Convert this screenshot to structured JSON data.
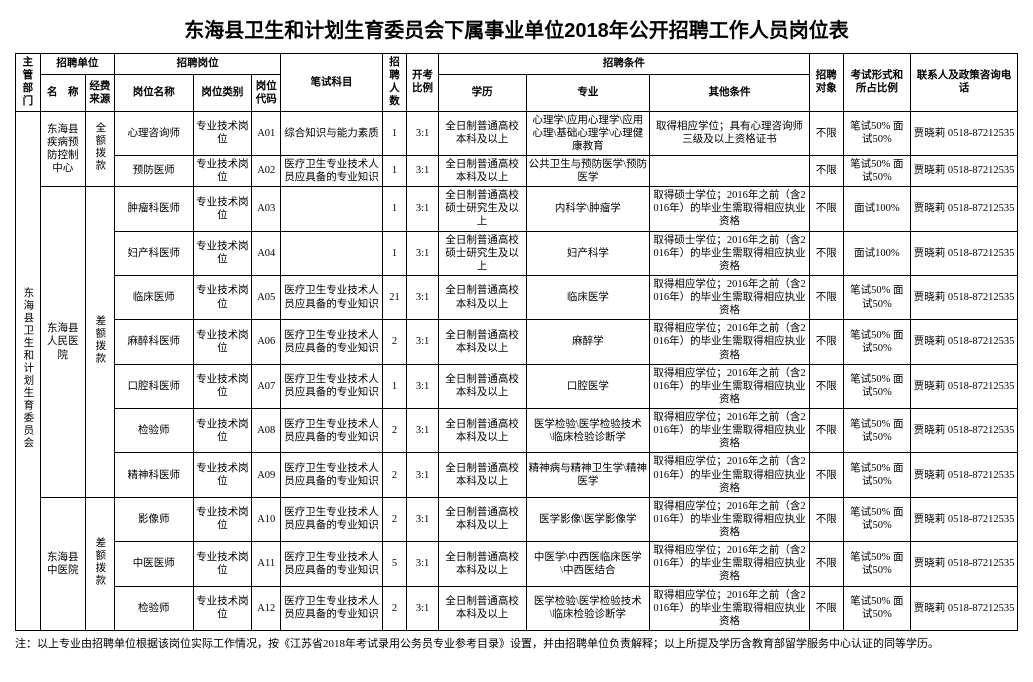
{
  "title": "东海县卫生和计划生育委员会下属事业单位2018年公开招聘工作人员岗位表",
  "headers": {
    "dept": "主管部门",
    "unit_group": "招聘单位",
    "unit_name": "名　称",
    "unit_fund": "经费来源",
    "pos_group": "招聘岗位",
    "pos_name": "岗位名称",
    "pos_cat": "岗位类别",
    "pos_code": "岗位代码",
    "exam_subject": "笔试科目",
    "num": "招聘人数",
    "ratio": "开考比例",
    "cond_group": "招聘条件",
    "edu": "学历",
    "major": "专业",
    "other": "其他条件",
    "target": "招聘对象",
    "form": "考试形式和所占比例",
    "contact": "联系人及政策咨询电话"
  },
  "dept": "东海县卫生和计划生育委员会",
  "units": [
    {
      "name": "东海县疾病预防控制中心",
      "fund": "全额拨款",
      "rowspan": 2
    },
    {
      "name": "东海县人民医院",
      "fund": "差额拨款",
      "rowspan": 7
    },
    {
      "name": "东海县中医院",
      "fund": "差额拨款",
      "rowspan": 3
    }
  ],
  "rows": [
    {
      "pos": "心理咨询师",
      "cat": "专业技术岗位",
      "code": "A01",
      "exam": "综合知识与能力素质",
      "num": "1",
      "ratio": "3:1",
      "edu": "全日制普通高校本科及以上",
      "major": "心理学\\应用心理学\\应用心理\\基础心理学\\心理健康教育",
      "other": "取得相应学位；具有心理咨询师三级及以上资格证书",
      "target": "不限",
      "form": "笔试50% 面试50%",
      "contact": "贾晓莉 0518-87212535"
    },
    {
      "pos": "预防医师",
      "cat": "专业技术岗位",
      "code": "A02",
      "exam": "医疗卫生专业技术人员应具备的专业知识",
      "num": "1",
      "ratio": "3:1",
      "edu": "全日制普通高校本科及以上",
      "major": "公共卫生与预防医学\\预防医学",
      "other": "",
      "target": "不限",
      "form": "笔试50% 面试50%",
      "contact": "贾晓莉 0518-87212535"
    },
    {
      "pos": "肿瘤科医师",
      "cat": "专业技术岗位",
      "code": "A03",
      "exam": "",
      "num": "1",
      "ratio": "3:1",
      "edu": "全日制普通高校硕士研究生及以上",
      "major": "内科学\\肿瘤学",
      "other": "取得硕士学位；2016年之前（含2016年）的毕业生需取得相应执业资格",
      "target": "不限",
      "form": "面试100%",
      "contact": "贾晓莉 0518-87212535"
    },
    {
      "pos": "妇产科医师",
      "cat": "专业技术岗位",
      "code": "A04",
      "exam": "",
      "num": "1",
      "ratio": "3:1",
      "edu": "全日制普通高校硕士研究生及以上",
      "major": "妇产科学",
      "other": "取得硕士学位；2016年之前（含2016年）的毕业生需取得相应执业资格",
      "target": "不限",
      "form": "面试100%",
      "contact": "贾晓莉 0518-87212535"
    },
    {
      "pos": "临床医师",
      "cat": "专业技术岗位",
      "code": "A05",
      "exam": "医疗卫生专业技术人员应具备的专业知识",
      "num": "21",
      "ratio": "3:1",
      "edu": "全日制普通高校本科及以上",
      "major": "临床医学",
      "other": "取得相应学位；2016年之前（含2016年）的毕业生需取得相应执业资格",
      "target": "不限",
      "form": "笔试50% 面试50%",
      "contact": "贾晓莉 0518-87212535"
    },
    {
      "pos": "麻醉科医师",
      "cat": "专业技术岗位",
      "code": "A06",
      "exam": "医疗卫生专业技术人员应具备的专业知识",
      "num": "2",
      "ratio": "3:1",
      "edu": "全日制普通高校本科及以上",
      "major": "麻醉学",
      "other": "取得相应学位；2016年之前（含2016年）的毕业生需取得相应执业资格",
      "target": "不限",
      "form": "笔试50% 面试50%",
      "contact": "贾晓莉 0518-87212535"
    },
    {
      "pos": "口腔科医师",
      "cat": "专业技术岗位",
      "code": "A07",
      "exam": "医疗卫生专业技术人员应具备的专业知识",
      "num": "1",
      "ratio": "3:1",
      "edu": "全日制普通高校本科及以上",
      "major": "口腔医学",
      "other": "取得相应学位；2016年之前（含2016年）的毕业生需取得相应执业资格",
      "target": "不限",
      "form": "笔试50% 面试50%",
      "contact": "贾晓莉 0518-87212535"
    },
    {
      "pos": "检验师",
      "cat": "专业技术岗位",
      "code": "A08",
      "exam": "医疗卫生专业技术人员应具备的专业知识",
      "num": "2",
      "ratio": "3:1",
      "edu": "全日制普通高校本科及以上",
      "major": "医学检验\\医学检验技术\\临床检验诊断学",
      "other": "取得相应学位；2016年之前（含2016年）的毕业生需取得相应执业资格",
      "target": "不限",
      "form": "笔试50% 面试50%",
      "contact": "贾晓莉 0518-87212535"
    },
    {
      "pos": "精神科医师",
      "cat": "专业技术岗位",
      "code": "A09",
      "exam": "医疗卫生专业技术人员应具备的专业知识",
      "num": "2",
      "ratio": "3:1",
      "edu": "全日制普通高校本科及以上",
      "major": "精神病与精神卫生学\\精神医学",
      "other": "取得相应学位；2016年之前（含2016年）的毕业生需取得相应执业资格",
      "target": "不限",
      "form": "笔试50% 面试50%",
      "contact": "贾晓莉 0518-87212535"
    },
    {
      "pos": "影像师",
      "cat": "专业技术岗位",
      "code": "A10",
      "exam": "医疗卫生专业技术人员应具备的专业知识",
      "num": "2",
      "ratio": "3:1",
      "edu": "全日制普通高校本科及以上",
      "major": "医学影像\\医学影像学",
      "other": "取得相应学位；2016年之前（含2016年）的毕业生需取得相应执业资格",
      "target": "不限",
      "form": "笔试50% 面试50%",
      "contact": "贾晓莉 0518-87212535"
    },
    {
      "pos": "中医医师",
      "cat": "专业技术岗位",
      "code": "A11",
      "exam": "医疗卫生专业技术人员应具备的专业知识",
      "num": "5",
      "ratio": "3:1",
      "edu": "全日制普通高校本科及以上",
      "major": "中医学\\中西医临床医学\\中西医结合",
      "other": "取得相应学位；2016年之前（含2016年）的毕业生需取得相应执业资格",
      "target": "不限",
      "form": "笔试50% 面试50%",
      "contact": "贾晓莉 0518-87212535"
    },
    {
      "pos": "检验师",
      "cat": "专业技术岗位",
      "code": "A12",
      "exam": "医疗卫生专业技术人员应具备的专业知识",
      "num": "2",
      "ratio": "3:1",
      "edu": "全日制普通高校本科及以上",
      "major": "医学检验\\医学检验技术\\临床检验诊断学",
      "other": "取得相应学位；2016年之前（含2016年）的毕业生需取得相应执业资格",
      "target": "不限",
      "form": "笔试50% 面试50%",
      "contact": "贾晓莉 0518-87212535"
    }
  ],
  "footnote": "注：以上专业由招聘单位根据该岗位实际工作情况，按《江苏省2018年考试录用公务员专业参考目录》设置，并由招聘单位负责解释；以上所提及学历含教育部留学服务中心认证的同等学历。"
}
